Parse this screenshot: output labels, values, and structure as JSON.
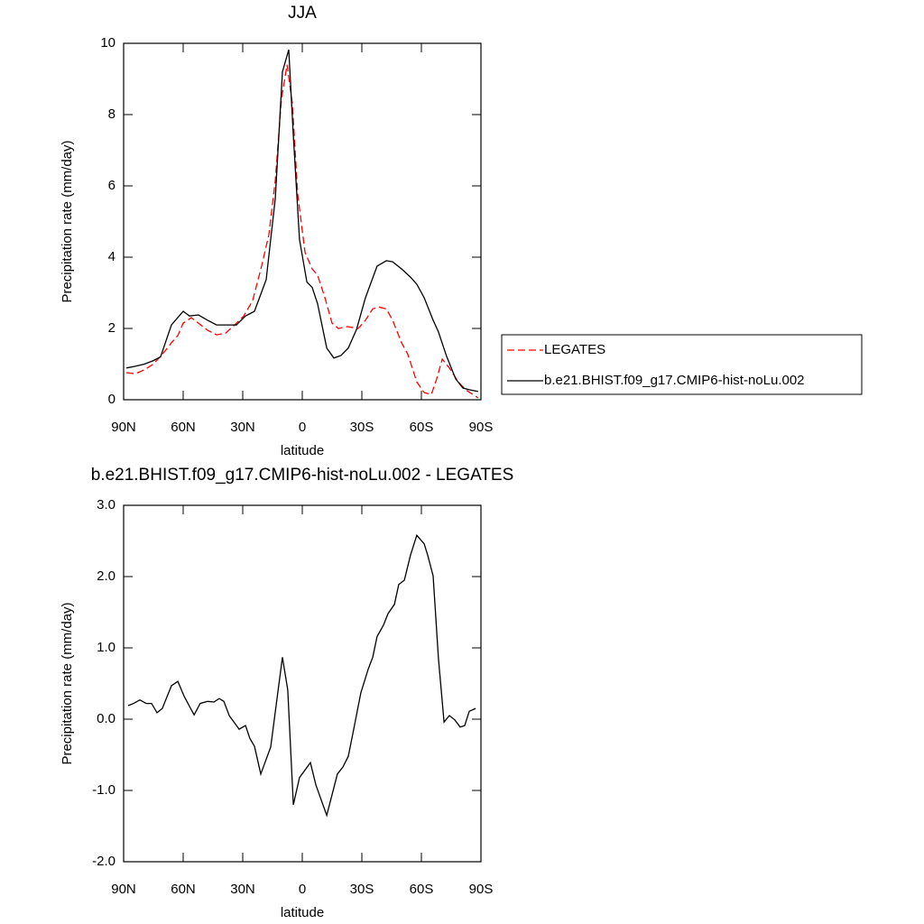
{
  "chart_data": [
    {
      "type": "line",
      "title": "JJA",
      "xlabel": "latitude",
      "ylabel": "Precipitation rate (mm/day)",
      "xlim": [
        90,
        -90
      ],
      "ylim": [
        0,
        10
      ],
      "xticks": [
        {
          "value": 90,
          "label": "90N"
        },
        {
          "value": 60,
          "label": "60N"
        },
        {
          "value": 30,
          "label": "30N"
        },
        0,
        {
          "value": -30,
          "label": "30S"
        },
        {
          "value": -60,
          "label": "60S"
        },
        {
          "value": -90,
          "label": "90S"
        }
      ],
      "yticks": [
        0,
        2,
        4,
        6,
        8,
        10
      ],
      "legend": "right",
      "series": [
        {
          "name": "LEGATES",
          "color": "#ff0000",
          "line_style": "dashed",
          "x": [
            88.6,
            84.1,
            79.5,
            75,
            70.5,
            65.9,
            62.7,
            60,
            55.9,
            52.3,
            47.7,
            43.2,
            38.6,
            34.1,
            29.5,
            25,
            20.5,
            16.8,
            13.6,
            10.5,
            7.7,
            5,
            2.3,
            -1.4,
            -5,
            -7.7,
            -11.4,
            -15,
            -18.2,
            -22.7,
            -28.2,
            -31.8,
            -35.5,
            -38.6,
            -42.3,
            -45.5,
            -50,
            -53.2,
            -57.7,
            -61.4,
            -65,
            -67.7,
            -70.5,
            -74.1,
            -78.6,
            -82.3,
            -86.4,
            -88.6
          ],
          "values": [
            0.76,
            0.73,
            0.84,
            1.0,
            1.27,
            1.6,
            1.8,
            2.15,
            2.3,
            2.15,
            1.95,
            1.82,
            1.87,
            2.1,
            2.35,
            2.78,
            3.75,
            4.63,
            6.15,
            8.43,
            9.4,
            8.3,
            5.77,
            4.13,
            3.67,
            3.5,
            2.86,
            2.15,
            2.0,
            2.05,
            2.0,
            2.23,
            2.55,
            2.6,
            2.55,
            2.23,
            1.6,
            1.27,
            0.5,
            0.2,
            0.15,
            0.58,
            1.14,
            0.89,
            0.5,
            0.28,
            0.13,
            0.05
          ]
        },
        {
          "name": "b.e21.BHIST.f09_g17.CMIP6-hist-noLu.002",
          "color": "#000000",
          "line_style": "solid",
          "x": [
            88.6,
            84.1,
            79.5,
            75,
            71.4,
            65.9,
            60,
            56.8,
            52.3,
            47.7,
            43.2,
            38.6,
            33.2,
            28.6,
            24.1,
            18.2,
            13.6,
            10,
            6.8,
            4.5,
            1.4,
            -2.3,
            -5,
            -7.7,
            -12.3,
            -15.9,
            -19.5,
            -23.2,
            -27.3,
            -31.8,
            -37.7,
            -42.3,
            -45.5,
            -50,
            -54.5,
            -57.7,
            -61.4,
            -65.9,
            -68.6,
            -72.7,
            -77.3,
            -80.9,
            -84.1,
            -88.6
          ],
          "values": [
            0.89,
            0.94,
            1.0,
            1.1,
            1.2,
            2.1,
            2.48,
            2.35,
            2.38,
            2.23,
            2.1,
            2.1,
            2.1,
            2.35,
            2.48,
            3.37,
            5.65,
            9.2,
            9.82,
            7.4,
            4.5,
            3.3,
            3.15,
            2.7,
            1.45,
            1.17,
            1.24,
            1.45,
            1.97,
            2.86,
            3.75,
            3.9,
            3.87,
            3.67,
            3.44,
            3.24,
            2.86,
            2.23,
            1.9,
            1.22,
            0.58,
            0.33,
            0.28,
            0.23
          ]
        }
      ]
    },
    {
      "type": "line",
      "title": "b.e21.BHIST.f09_g17.CMIP6-hist-noLu.002 - LEGATES",
      "xlabel": "latitude",
      "ylabel": "Precipitation rate (mm/day)",
      "xlim": [
        90,
        -90
      ],
      "ylim": [
        -2,
        3
      ],
      "xticks": [
        {
          "value": 90,
          "label": "90N"
        },
        {
          "value": 60,
          "label": "60N"
        },
        {
          "value": 30,
          "label": "30N"
        },
        0,
        {
          "value": -30,
          "label": "30S"
        },
        {
          "value": -60,
          "label": "60S"
        },
        {
          "value": -90,
          "label": "90S"
        }
      ],
      "yticks": [
        {
          "value": -2,
          "label": "-2.0"
        },
        {
          "value": -1,
          "label": "-1.0"
        },
        {
          "value": 0,
          "label": "0.0"
        },
        {
          "value": 1,
          "label": "1.0"
        },
        {
          "value": 2,
          "label": "2.0"
        },
        {
          "value": 3,
          "label": "3.0"
        }
      ],
      "series": [
        {
          "color": "#000000",
          "line_style": "solid",
          "x": [
            87.7,
            85,
            81.8,
            78.6,
            75.9,
            73.2,
            70.5,
            65.9,
            62.7,
            59.5,
            54.5,
            51.4,
            47.7,
            44.5,
            41.8,
            39.5,
            36.8,
            31.8,
            28.6,
            26.4,
            24.1,
            20.9,
            15.9,
            10,
            7.3,
            4.5,
            1.4,
            -4.1,
            -6.8,
            -12.3,
            -17.7,
            -20.5,
            -23.2,
            -25.9,
            -29.5,
            -33.2,
            -35.5,
            -37.7,
            -40.9,
            -43.2,
            -46.4,
            -48.6,
            -51.4,
            -54.5,
            -57.7,
            -61.4,
            -63.2,
            -65.9,
            -68.6,
            -71.4,
            -74.1,
            -76.8,
            -79.5,
            -81.8,
            -84.1,
            -87.3
          ],
          "values": [
            0.19,
            0.22,
            0.27,
            0.22,
            0.22,
            0.09,
            0.15,
            0.47,
            0.53,
            0.32,
            0.06,
            0.22,
            0.25,
            0.24,
            0.29,
            0.25,
            0.05,
            -0.14,
            -0.09,
            -0.27,
            -0.38,
            -0.77,
            -0.39,
            0.87,
            0.41,
            -1.2,
            -0.82,
            -0.61,
            -0.92,
            -1.35,
            -0.77,
            -0.67,
            -0.52,
            -0.14,
            0.37,
            0.7,
            0.87,
            1.16,
            1.32,
            1.48,
            1.61,
            1.89,
            1.95,
            2.3,
            2.58,
            2.46,
            2.3,
            2.01,
            0.85,
            -0.04,
            0.05,
            -0.01,
            -0.11,
            -0.09,
            0.11,
            0.15
          ]
        }
      ]
    }
  ]
}
